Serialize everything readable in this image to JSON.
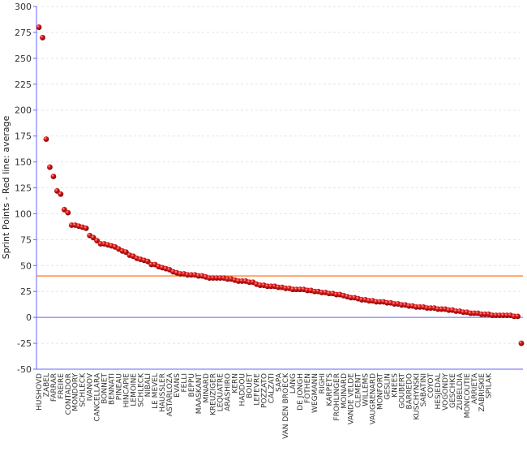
{
  "chart_data": {
    "type": "scatter",
    "title": "",
    "xlabel": "",
    "ylabel": "Sprint Points - Red line: average",
    "ylim": [
      -50,
      300
    ],
    "yticks": [
      300,
      275,
      250,
      225,
      200,
      175,
      150,
      125,
      100,
      75,
      50,
      25,
      0,
      -25,
      -50
    ],
    "average": 40,
    "grid": true,
    "legend": "none",
    "colors": {
      "point": "#cc0000",
      "average_line": "#ff6600",
      "axis": "#6666ff",
      "grid": "#e4e4e4"
    },
    "category_labels": [
      "HUSHOVD",
      "ZABEL",
      "FARRAR",
      "FREIRE",
      "CONTADOR",
      "MONDORY",
      "SCHLECK",
      "IVANOV",
      "CANCELLARA",
      "BONNET",
      "BENNATI",
      "PINEAU",
      "HINCAPIE",
      "LEMOINE",
      "SCHLECK",
      "NIBALI",
      "LE MEVEL",
      "HAUSSLER",
      "ASTARLOZA",
      "EVANS",
      "FELLI",
      "BEPPU",
      "MAASKANT",
      "MINARD",
      "KREUZIGER",
      "LEQUATRE",
      "ARASHIRO",
      "KERN",
      "HADDOU",
      "BOUET",
      "LEFEVRE",
      "POZZATO",
      "CALZATI",
      "SAPA",
      "VAN DEN BROECK",
      "LANG",
      "DE JONGH",
      "FOTHEN",
      "WEGMANN",
      "RIGHI",
      "KARPETS",
      "FROHLINGER",
      "MOINARD",
      "VANDE VELDE",
      "CLEMENT",
      "WILLEMS",
      "VAUGRENARD",
      "MONFORT",
      "GESLIN",
      "KNEES",
      "GOUBERT",
      "BARREDO",
      "KUSCHYNSKI",
      "SABATINI",
      "COYOT",
      "HESJEDAL",
      "VOGONDY",
      "GESCHKE",
      "ZUBELDIA",
      "MONCOUTIE",
      "ARRIETA",
      "ZABRISKIE",
      "SPILAK"
    ],
    "values": [
      280,
      270,
      172,
      145,
      136,
      122,
      119,
      104,
      101,
      89,
      89,
      88,
      87,
      86,
      79,
      77,
      74,
      71,
      71,
      70,
      69,
      68,
      66,
      64,
      63,
      60,
      59,
      57,
      56,
      55,
      54,
      51,
      51,
      49,
      48,
      47,
      46,
      44,
      43,
      42,
      42,
      41,
      41,
      41,
      40,
      40,
      39,
      38,
      38,
      38,
      38,
      38,
      37,
      37,
      36,
      35,
      35,
      35,
      34,
      34,
      32,
      31,
      31,
      30,
      30,
      30,
      29,
      29,
      28,
      28,
      27,
      27,
      27,
      27,
      26,
      26,
      25,
      25,
      24,
      24,
      23,
      23,
      22,
      22,
      21,
      20,
      19,
      19,
      18,
      17,
      17,
      16,
      16,
      15,
      15,
      15,
      14,
      14,
      13,
      13,
      12,
      12,
      11,
      11,
      10,
      10,
      10,
      9,
      9,
      9,
      8,
      8,
      8,
      7,
      7,
      6,
      6,
      5,
      5,
      4,
      4,
      4,
      3,
      3,
      3,
      2,
      2,
      2,
      2,
      2,
      2,
      1,
      1,
      -25
    ]
  }
}
